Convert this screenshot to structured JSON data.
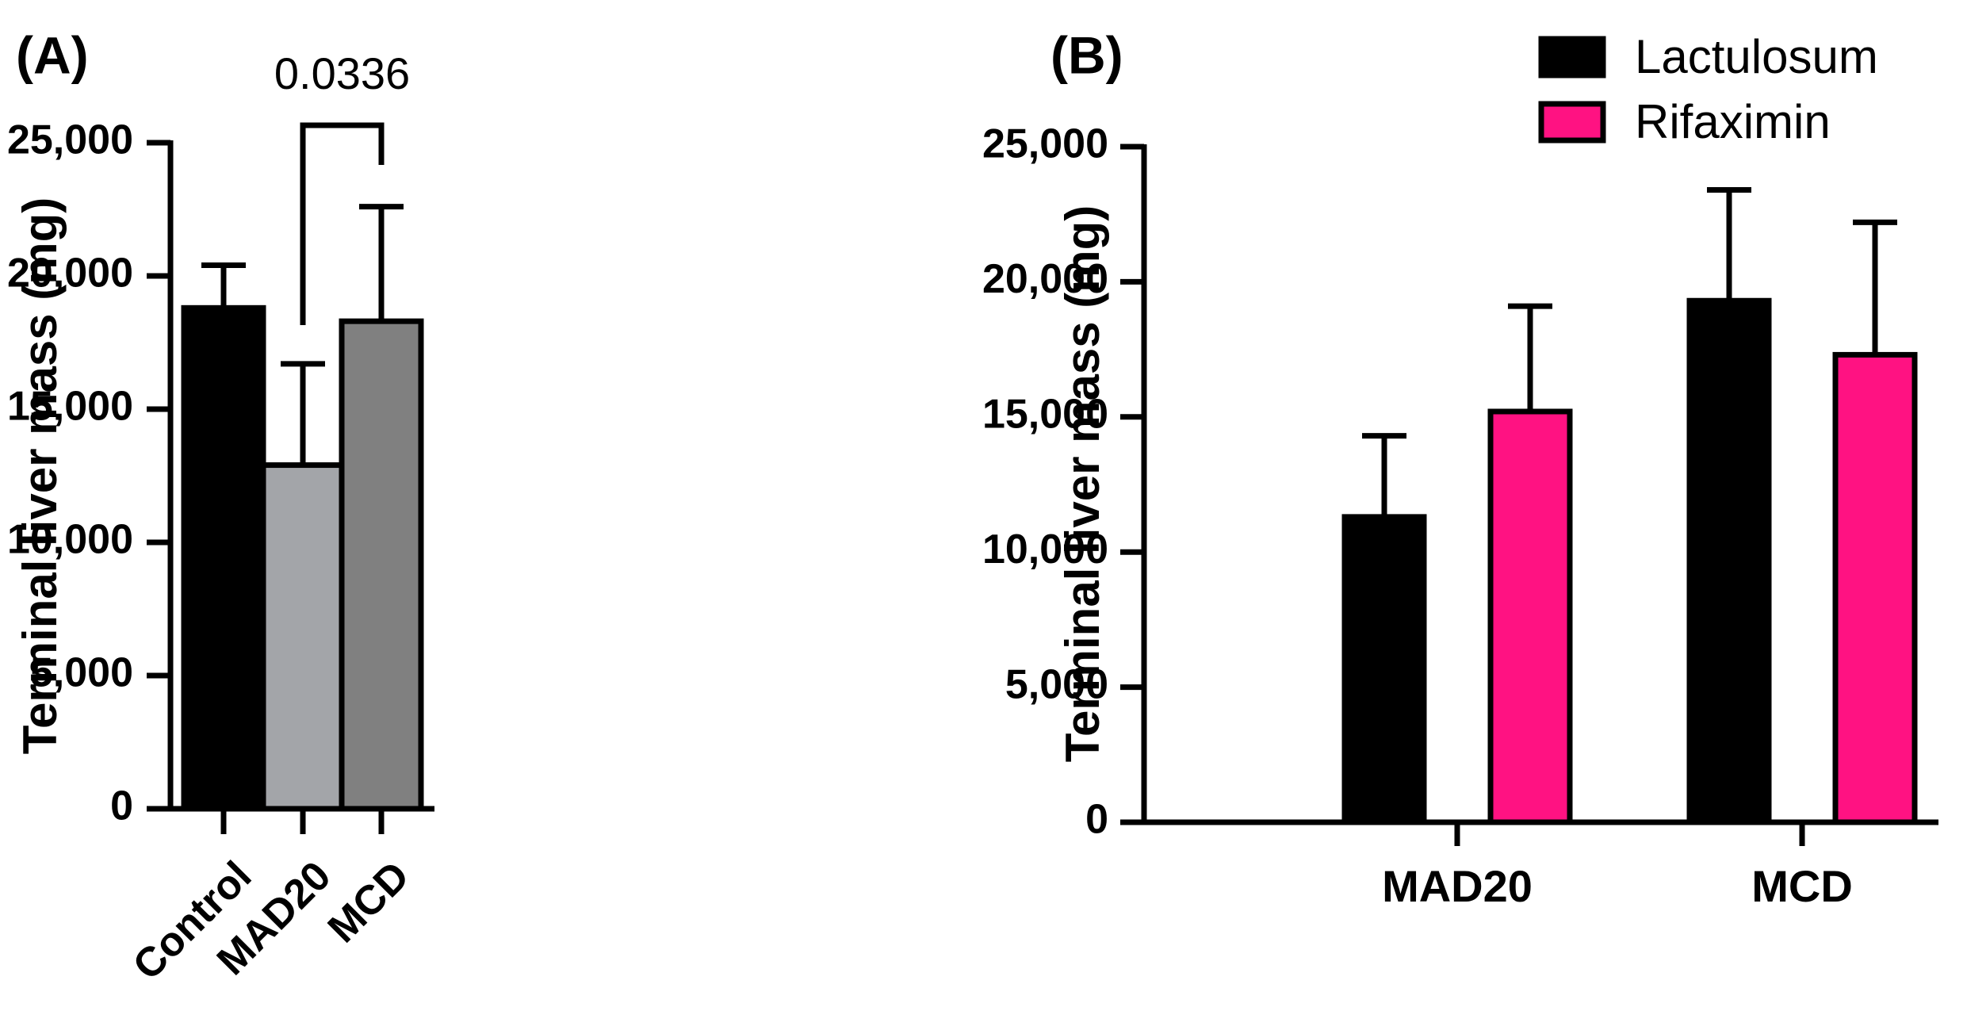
{
  "chart_data": [
    {
      "panel_label": "(A)",
      "type": "bar",
      "categories": [
        "Control",
        "MAD20",
        "MCD"
      ],
      "values": [
        18800,
        12900,
        18300
      ],
      "errors": [
        1600,
        3800,
        4300
      ],
      "bar_colors": [
        "#000000",
        "#a3a5a9",
        "#808080"
      ],
      "ylabel": "Terminal liver mass (mg)",
      "ylim": [
        0,
        25000
      ],
      "yticks": [
        0,
        5000,
        10000,
        15000,
        20000,
        25000
      ],
      "ytick_labels": [
        "0",
        "5,000",
        "10,000",
        "15,000",
        "20,000",
        "25,000"
      ],
      "significance": {
        "from": "MAD20",
        "to": "MCD",
        "label": "0.0336"
      }
    },
    {
      "panel_label": "(B)",
      "type": "bar",
      "categories": [
        "MAD20",
        "MCD"
      ],
      "series": [
        {
          "name": "Lactulosum",
          "color": "#000000",
          "values": [
            11300,
            19300
          ],
          "errors": [
            3000,
            4100
          ]
        },
        {
          "name": "Rifaximin",
          "color": "#ff1282",
          "values": [
            15200,
            17300
          ],
          "errors": [
            3900,
            4900
          ]
        }
      ],
      "ylabel": "Terminal liver mass (mg)",
      "ylim": [
        0,
        25000
      ],
      "yticks": [
        0,
        5000,
        10000,
        15000,
        20000,
        25000
      ],
      "ytick_labels": [
        "0",
        "5,000",
        "10,000",
        "15,000",
        "20,000",
        "25,000"
      ],
      "legend": "top-right"
    }
  ]
}
